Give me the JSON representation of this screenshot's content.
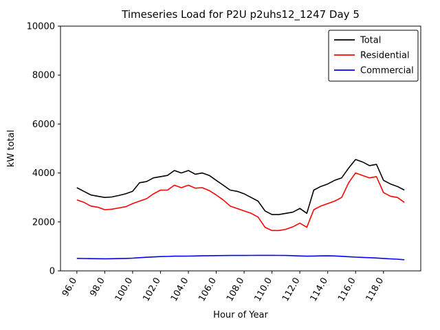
{
  "chart_data": {
    "type": "line",
    "title": "Timeseries Load for P2U p2uhs12_1247  Day 5",
    "xlabel": "Hour of Year",
    "ylabel": "kW total",
    "xlim": [
      94.825,
      120.675
    ],
    "ylim": [
      0,
      10000
    ],
    "xticks": [
      96,
      98,
      100,
      102,
      104,
      106,
      108,
      110,
      112,
      114,
      116,
      118
    ],
    "xtick_labels": [
      "96.0",
      "98.0",
      "100.0",
      "102.0",
      "104.0",
      "106.0",
      "108.0",
      "110.0",
      "112.0",
      "114.0",
      "116.0",
      "118.0"
    ],
    "yticks": [
      0,
      2000,
      4000,
      6000,
      8000,
      10000
    ],
    "ytick_labels": [
      "0",
      "2000",
      "4000",
      "6000",
      "8000",
      "10000"
    ],
    "grid": false,
    "legend_position": "upper right",
    "x": [
      96.0,
      96.5,
      97.0,
      97.5,
      98.0,
      98.5,
      99.0,
      99.5,
      100.0,
      100.5,
      101.0,
      101.5,
      102.0,
      102.5,
      103.0,
      103.5,
      104.0,
      104.5,
      105.0,
      105.5,
      106.0,
      106.5,
      107.0,
      107.5,
      108.0,
      108.5,
      109.0,
      109.5,
      110.0,
      110.5,
      111.0,
      111.5,
      112.0,
      112.5,
      113.0,
      113.5,
      114.0,
      114.5,
      115.0,
      115.5,
      116.0,
      116.5,
      117.0,
      117.5,
      118.0,
      118.5,
      119.0,
      119.5
    ],
    "series": [
      {
        "name": "Total",
        "color": "#000000",
        "values": [
          3400,
          3250,
          3100,
          3050,
          3000,
          3020,
          3080,
          3150,
          3250,
          3600,
          3650,
          3800,
          3850,
          3900,
          4100,
          4000,
          4100,
          3950,
          4000,
          3900,
          3700,
          3500,
          3300,
          3250,
          3150,
          3000,
          2850,
          2450,
          2300,
          2300,
          2350,
          2400,
          2550,
          2350,
          3300,
          3450,
          3550,
          3700,
          3800,
          4200,
          4550,
          4450,
          4300,
          4350,
          3700,
          3550,
          3450,
          3300
        ]
      },
      {
        "name": "Residential",
        "color": "#ff0000",
        "values": [
          2900,
          2800,
          2650,
          2600,
          2500,
          2520,
          2570,
          2620,
          2750,
          2850,
          2950,
          3150,
          3300,
          3300,
          3500,
          3400,
          3500,
          3380,
          3400,
          3280,
          3100,
          2900,
          2650,
          2550,
          2450,
          2350,
          2200,
          1780,
          1650,
          1650,
          1700,
          1800,
          1950,
          1780,
          2500,
          2650,
          2750,
          2850,
          3000,
          3600,
          4000,
          3900,
          3800,
          3850,
          3200,
          3050,
          3000,
          2800
        ]
      },
      {
        "name": "Commercial",
        "color": "#0000ff",
        "values": [
          510,
          505,
          500,
          498,
          495,
          498,
          502,
          508,
          520,
          540,
          555,
          570,
          585,
          590,
          600,
          602,
          605,
          610,
          615,
          620,
          625,
          626,
          628,
          630,
          630,
          632,
          634,
          635,
          635,
          632,
          628,
          620,
          610,
          602,
          608,
          612,
          615,
          610,
          595,
          578,
          562,
          550,
          540,
          525,
          508,
          492,
          478,
          455
        ]
      }
    ]
  }
}
